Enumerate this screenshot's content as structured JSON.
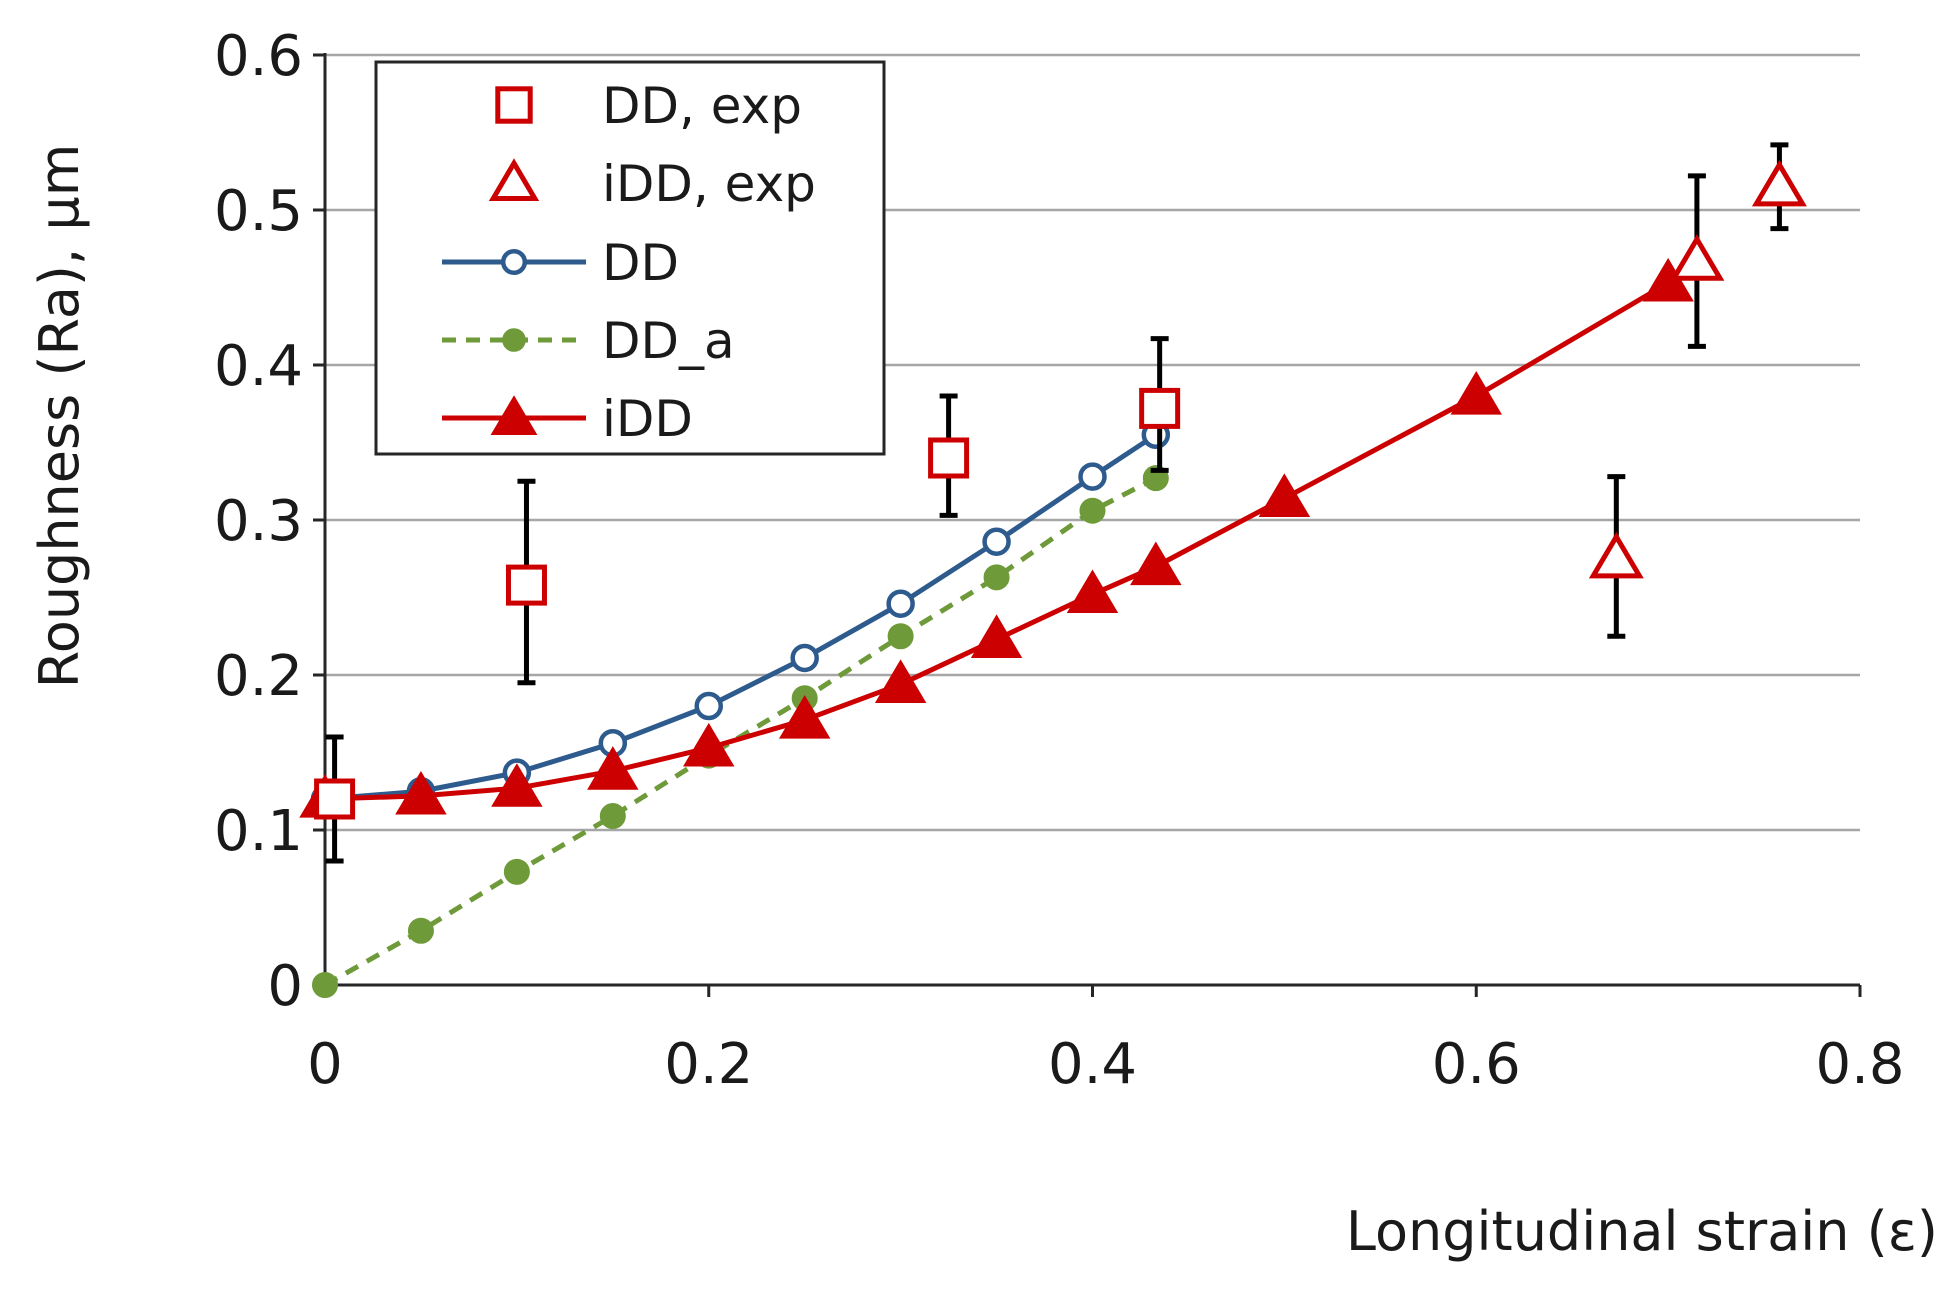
{
  "chart_data": {
    "type": "line",
    "title": "",
    "xlabel": "Longitudinal strain (ε)",
    "ylabel": "Roughness (Ra), µm",
    "xlim": [
      0,
      0.8
    ],
    "ylim": [
      0,
      0.6
    ],
    "x_ticks": [
      "0",
      "0.2",
      "0.4",
      "0.6",
      "0.8"
    ],
    "y_ticks": [
      "0",
      "0.1",
      "0.2",
      "0.3",
      "0.4",
      "0.5",
      "0.6"
    ],
    "grid": "horizontal",
    "legend_position": "top-left",
    "colors": {
      "red": "#cc0000",
      "blue": "#2e5b8e",
      "green": "#6f9a3a",
      "error_bar": "#000000",
      "grid": "#a6a6a6",
      "axis": "#262626"
    },
    "legend": [
      "DD, exp",
      "iDD, exp",
      "DD",
      "DD_a",
      "iDD"
    ],
    "series": [
      {
        "name": "DD, exp",
        "kind": "markers",
        "marker": "open-square",
        "color": "#cc0000",
        "x": [
          0.005,
          0.105,
          0.325,
          0.435
        ],
        "y": [
          0.12,
          0.258,
          0.34,
          0.372
        ],
        "err_low": [
          0.08,
          0.195,
          0.303,
          0.332
        ],
        "err_high": [
          0.16,
          0.325,
          0.38,
          0.417
        ]
      },
      {
        "name": "iDD, exp",
        "kind": "markers",
        "marker": "open-triangle",
        "color": "#cc0000",
        "x": [
          0.673,
          0.715,
          0.758
        ],
        "y": [
          0.275,
          0.467,
          0.515
        ],
        "err_low": [
          0.225,
          0.412,
          0.488
        ],
        "err_high": [
          0.328,
          0.522,
          0.542
        ]
      },
      {
        "name": "DD",
        "kind": "line",
        "marker": "open-circle",
        "color": "#2e5b8e",
        "dash": false,
        "x": [
          0,
          0.05,
          0.1,
          0.15,
          0.2,
          0.25,
          0.3,
          0.35,
          0.4,
          0.433
        ],
        "y": [
          0.12,
          0.125,
          0.137,
          0.156,
          0.18,
          0.211,
          0.246,
          0.286,
          0.328,
          0.355
        ]
      },
      {
        "name": "DD_a",
        "kind": "line",
        "marker": "filled-circle",
        "color": "#6f9a3a",
        "dash": true,
        "x": [
          0,
          0.05,
          0.1,
          0.15,
          0.2,
          0.25,
          0.3,
          0.35,
          0.4,
          0.433
        ],
        "y": [
          0,
          0.035,
          0.073,
          0.109,
          0.148,
          0.185,
          0.225,
          0.263,
          0.306,
          0.327
        ]
      },
      {
        "name": "iDD",
        "kind": "line",
        "marker": "filled-triangle",
        "color": "#cc0000",
        "dash": false,
        "x": [
          0,
          0.05,
          0.1,
          0.15,
          0.2,
          0.25,
          0.3,
          0.35,
          0.4,
          0.433,
          0.5,
          0.6,
          0.7
        ],
        "y": [
          0.12,
          0.122,
          0.127,
          0.138,
          0.153,
          0.171,
          0.194,
          0.223,
          0.252,
          0.27,
          0.314,
          0.38,
          0.453
        ]
      }
    ]
  }
}
